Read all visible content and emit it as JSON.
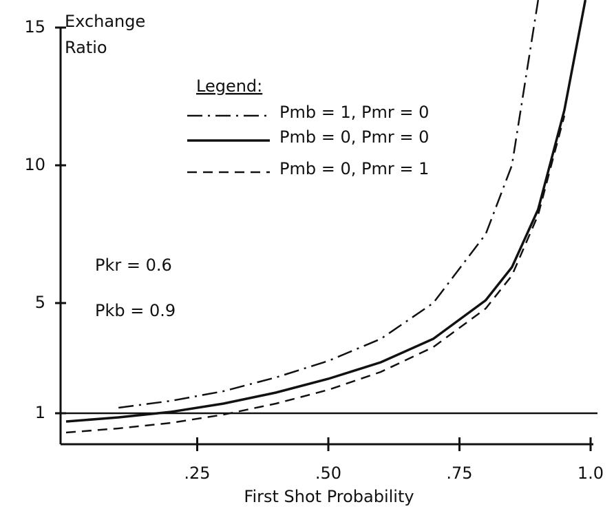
{
  "chart_data": {
    "type": "line",
    "y_label": [
      "Exchange",
      "Ratio"
    ],
    "x_label": "First Shot Probability",
    "x": [
      0,
      0.1,
      0.2,
      0.3,
      0.4,
      0.5,
      0.6,
      0.7,
      0.8,
      0.85,
      0.9,
      0.95,
      0.99
    ],
    "series": [
      {
        "name": "Pmb = 1, Pmr = 0",
        "color": "#111111",
        "dash": "dashdot",
        "values": [
          null,
          1.2,
          1.45,
          1.8,
          2.3,
          2.9,
          3.7,
          5.0,
          7.5,
          10,
          16,
          null,
          null
        ]
      },
      {
        "name": "Pmb = 0, Pmr = 0",
        "color": "#111111",
        "dash": "solid",
        "values": [
          0.7,
          0.85,
          1.05,
          1.35,
          1.75,
          2.25,
          2.85,
          3.7,
          5.1,
          6.3,
          8.4,
          12,
          16
        ]
      },
      {
        "name": "Pmb = 0, Pmr = 1",
        "color": "#111111",
        "dash": "dashed",
        "values": [
          0.3,
          0.45,
          0.65,
          0.95,
          1.35,
          1.85,
          2.5,
          3.4,
          4.8,
          6.0,
          8.2,
          11.8,
          null
        ]
      }
    ],
    "legend_title": "Legend:",
    "reference_line": 1,
    "annotations": [
      "Pkr = 0.6",
      "Pkb = 0.9"
    ],
    "xlim": [
      0,
      1
    ],
    "ylim": [
      0,
      16
    ],
    "xticks": [
      {
        "value": 0.25,
        "label": ".25"
      },
      {
        "value": 0.5,
        "label": ".50"
      },
      {
        "value": 0.75,
        "label": ".75"
      },
      {
        "value": 1.0,
        "label": "1.0"
      }
    ],
    "yticks": [
      1,
      5,
      10,
      15
    ]
  }
}
